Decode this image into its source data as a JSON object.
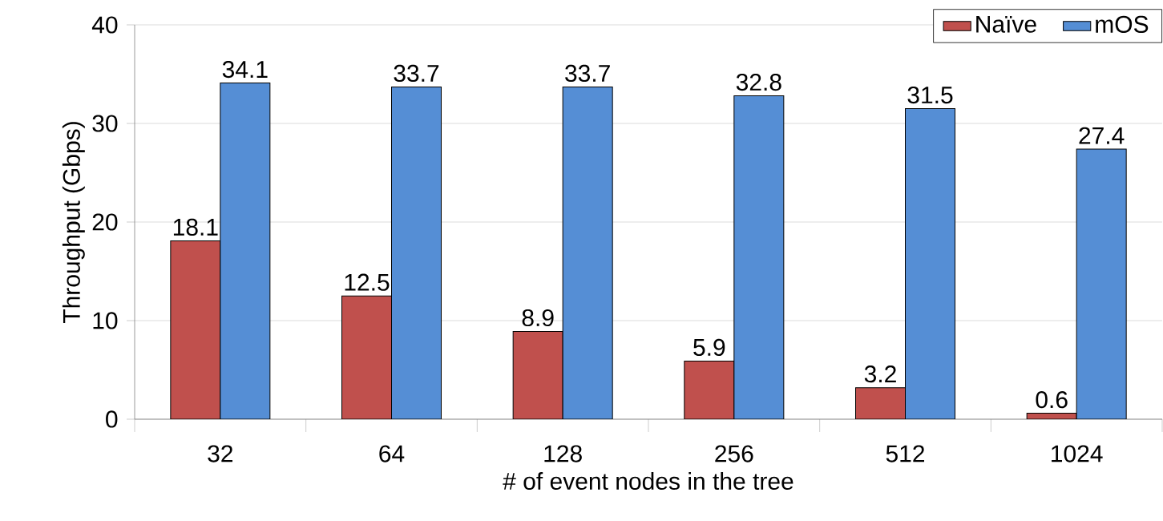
{
  "chart_data": {
    "type": "bar",
    "xlabel": "# of event nodes in the tree",
    "ylabel": "Throughput (Gbps)",
    "categories": [
      "32",
      "64",
      "128",
      "256",
      "512",
      "1024"
    ],
    "series": [
      {
        "name": "Naïve",
        "color": "#c0504d",
        "values": [
          18.1,
          12.5,
          8.9,
          5.9,
          3.2,
          0.6
        ]
      },
      {
        "name": "mOS",
        "color": "#558ed5",
        "values": [
          34.1,
          33.7,
          33.7,
          32.8,
          31.5,
          27.4
        ]
      }
    ],
    "ylim": [
      0,
      40
    ],
    "yticks": [
      0,
      10,
      20,
      30,
      40
    ],
    "grid": "y",
    "legend": "top right",
    "data_labels": true
  }
}
